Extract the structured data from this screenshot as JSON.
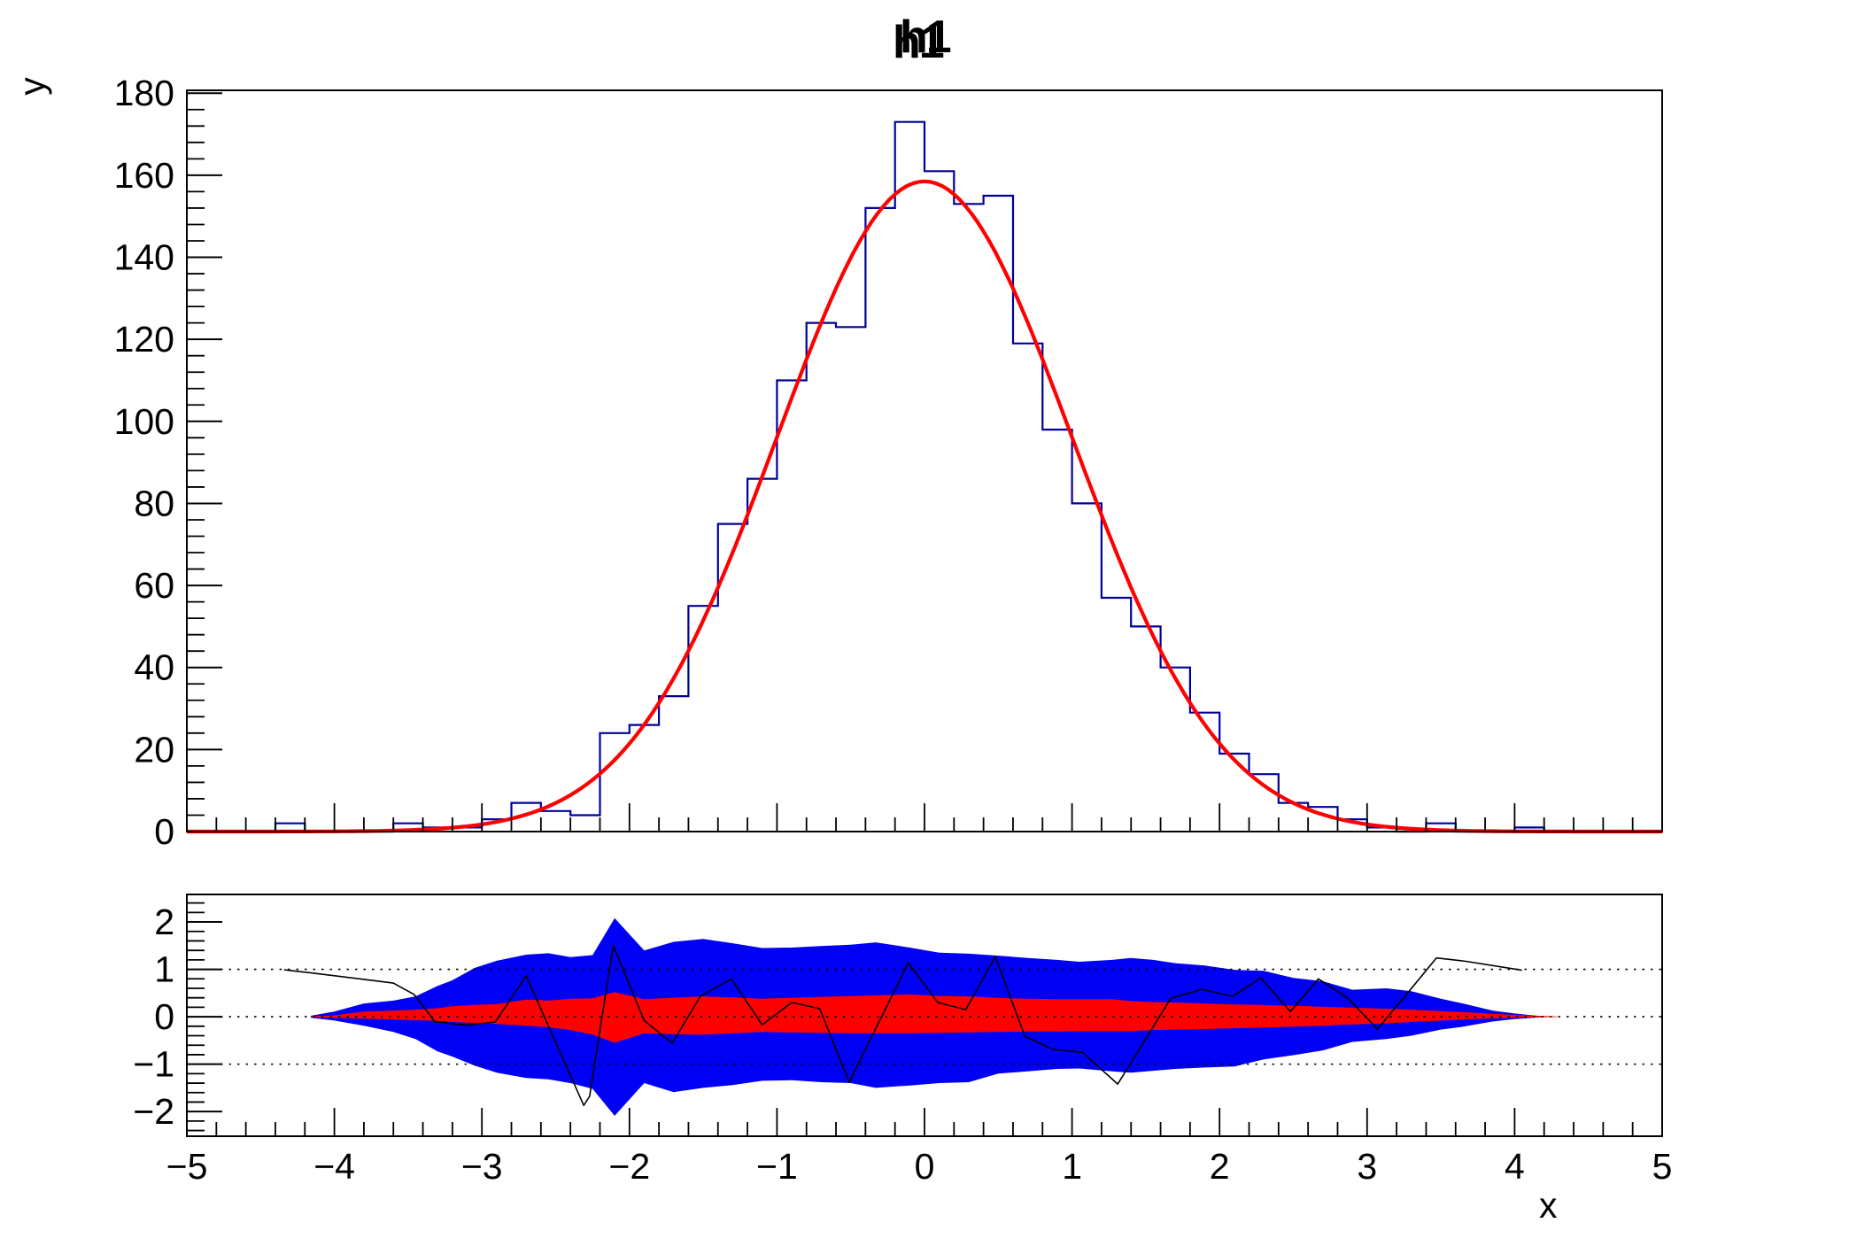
{
  "title": {
    "text": "h1"
  },
  "axes": {
    "x": {
      "label": "x",
      "min": -5,
      "max": 5,
      "major_ticks": [
        -5,
        -4,
        -3,
        -2,
        -1,
        0,
        1,
        2,
        3,
        4,
        5
      ],
      "tick_labels": [
        "−5",
        "−4",
        "−3",
        "−2",
        "−1",
        "0",
        "1",
        "2",
        "3",
        "4",
        "5"
      ],
      "minor_step": 0.2
    },
    "y_top": {
      "label": "y",
      "min": 0,
      "max": 180.7,
      "major_ticks": [
        0,
        20,
        40,
        60,
        80,
        100,
        120,
        140,
        160,
        180
      ],
      "tick_labels": [
        "0",
        "20",
        "40",
        "60",
        "80",
        "100",
        "120",
        "140",
        "160",
        "180"
      ],
      "minor_step": 4
    },
    "y_bottom": {
      "min": -2.52,
      "max": 2.58,
      "major_ticks": [
        -2,
        -1,
        0,
        1,
        2
      ],
      "tick_labels": [
        "−2",
        "−1",
        "0",
        "1",
        "2"
      ],
      "minor_step": 0.2,
      "dotted_gridlines": [
        -1,
        0,
        1
      ]
    }
  },
  "colors": {
    "histogram_line": "#000099",
    "fit_curve": "#ff0000",
    "band_1sigma": "#ff0000",
    "band_2sigma": "#0000f5",
    "ratio_line": "#000000",
    "frame": "#000000"
  },
  "chart_data": [
    {
      "type": "bar",
      "subtype": "step-histogram-with-fit",
      "title": "h1",
      "xlabel": "x",
      "ylabel": "y",
      "xlim": [
        -5,
        5
      ],
      "ylim": [
        0,
        180.7
      ],
      "bin_start": -5,
      "bin_width": 0.2,
      "values": [
        0,
        0,
        0,
        2,
        0,
        0,
        0,
        2,
        1,
        1,
        3,
        7,
        5,
        4,
        24,
        26,
        33,
        55,
        75,
        86,
        110,
        124,
        123,
        152,
        173,
        161,
        153,
        155,
        119,
        98,
        80,
        57,
        50,
        40,
        29,
        19,
        14,
        7,
        6,
        3,
        1,
        0,
        2,
        0,
        0,
        1,
        0,
        0,
        0,
        0
      ],
      "fit": {
        "shape": "gaussian",
        "amplitude": 158.5,
        "mean": 0,
        "sigma": 1.0,
        "range": [
          -5,
          5
        ]
      }
    },
    {
      "type": "line",
      "subtype": "ratio-residual-panel",
      "xlim": [
        -5,
        5
      ],
      "ylim": [
        -2.52,
        2.58
      ],
      "dotted_gridlines": [
        -1,
        0,
        1
      ],
      "band_2sigma": [
        [
          -4.16,
          0.02,
          -0.02
        ],
        [
          -4.0,
          0.11,
          -0.08
        ],
        [
          -3.8,
          0.28,
          -0.19
        ],
        [
          -3.6,
          0.34,
          -0.32
        ],
        [
          -3.45,
          0.43,
          -0.47
        ],
        [
          -3.3,
          0.65,
          -0.73
        ],
        [
          -3.2,
          0.77,
          -0.84
        ],
        [
          -3.05,
          1.03,
          -1.03
        ],
        [
          -2.9,
          1.18,
          -1.18
        ],
        [
          -2.7,
          1.31,
          -1.29
        ],
        [
          -2.55,
          1.34,
          -1.32
        ],
        [
          -2.4,
          1.26,
          -1.4
        ],
        [
          -2.25,
          1.3,
          -1.52
        ],
        [
          -2.1,
          2.08,
          -2.09
        ],
        [
          -1.9,
          1.4,
          -1.4
        ],
        [
          -1.7,
          1.58,
          -1.59
        ],
        [
          -1.5,
          1.64,
          -1.5
        ],
        [
          -1.3,
          1.55,
          -1.44
        ],
        [
          -1.1,
          1.45,
          -1.35
        ],
        [
          -0.9,
          1.46,
          -1.34
        ],
        [
          -0.7,
          1.49,
          -1.38
        ],
        [
          -0.5,
          1.52,
          -1.4
        ],
        [
          -0.33,
          1.57,
          -1.5
        ],
        [
          -0.1,
          1.46,
          -1.45
        ],
        [
          0.1,
          1.35,
          -1.4
        ],
        [
          0.3,
          1.33,
          -1.38
        ],
        [
          0.5,
          1.29,
          -1.2
        ],
        [
          0.7,
          1.24,
          -1.15
        ],
        [
          0.9,
          1.2,
          -1.1
        ],
        [
          1.05,
          1.16,
          -1.09
        ],
        [
          1.27,
          1.2,
          -1.15
        ],
        [
          1.4,
          1.24,
          -1.18
        ],
        [
          1.55,
          1.2,
          -1.14
        ],
        [
          1.7,
          1.13,
          -1.1
        ],
        [
          1.9,
          1.08,
          -1.07
        ],
        [
          2.1,
          0.99,
          -1.05
        ],
        [
          2.3,
          0.97,
          -0.9
        ],
        [
          2.5,
          0.82,
          -0.81
        ],
        [
          2.7,
          0.75,
          -0.71
        ],
        [
          2.9,
          0.57,
          -0.53
        ],
        [
          3.13,
          0.6,
          -0.47
        ],
        [
          3.3,
          0.54,
          -0.4
        ],
        [
          3.5,
          0.38,
          -0.27
        ],
        [
          3.65,
          0.28,
          -0.21
        ],
        [
          3.85,
          0.13,
          -0.1
        ],
        [
          4.0,
          0.07,
          -0.05
        ],
        [
          4.19,
          0.01,
          -0.01
        ]
      ],
      "band_1sigma": [
        [
          -4.16,
          0.01,
          -0.01
        ],
        [
          -4.0,
          0.03,
          -0.02
        ],
        [
          -3.8,
          0.11,
          -0.04
        ],
        [
          -3.6,
          0.13,
          -0.06
        ],
        [
          -3.45,
          0.15,
          -0.07
        ],
        [
          -3.3,
          0.18,
          -0.09
        ],
        [
          -3.2,
          0.22,
          -0.11
        ],
        [
          -3.05,
          0.25,
          -0.13
        ],
        [
          -2.9,
          0.27,
          -0.15
        ],
        [
          -2.7,
          0.36,
          -0.19
        ],
        [
          -2.55,
          0.34,
          -0.22
        ],
        [
          -2.4,
          0.38,
          -0.28
        ],
        [
          -2.25,
          0.39,
          -0.38
        ],
        [
          -2.1,
          0.52,
          -0.55
        ],
        [
          -1.9,
          0.37,
          -0.35
        ],
        [
          -1.7,
          0.4,
          -0.37
        ],
        [
          -1.5,
          0.43,
          -0.38
        ],
        [
          -1.3,
          0.41,
          -0.35
        ],
        [
          -1.1,
          0.38,
          -0.32
        ],
        [
          -0.9,
          0.4,
          -0.33
        ],
        [
          -0.7,
          0.42,
          -0.34
        ],
        [
          -0.5,
          0.44,
          -0.35
        ],
        [
          -0.33,
          0.45,
          -0.35
        ],
        [
          -0.1,
          0.47,
          -0.35
        ],
        [
          0.1,
          0.44,
          -0.34
        ],
        [
          0.3,
          0.43,
          -0.33
        ],
        [
          0.5,
          0.4,
          -0.32
        ],
        [
          0.7,
          0.38,
          -0.31
        ],
        [
          0.9,
          0.37,
          -0.31
        ],
        [
          1.05,
          0.37,
          -0.3
        ],
        [
          1.27,
          0.37,
          -0.3
        ],
        [
          1.4,
          0.33,
          -0.3
        ],
        [
          1.55,
          0.31,
          -0.28
        ],
        [
          1.7,
          0.3,
          -0.27
        ],
        [
          1.9,
          0.28,
          -0.26
        ],
        [
          2.1,
          0.26,
          -0.24
        ],
        [
          2.3,
          0.25,
          -0.23
        ],
        [
          2.5,
          0.23,
          -0.21
        ],
        [
          2.7,
          0.21,
          -0.19
        ],
        [
          2.9,
          0.19,
          -0.16
        ],
        [
          3.13,
          0.17,
          -0.14
        ],
        [
          3.3,
          0.15,
          -0.11
        ],
        [
          3.5,
          0.12,
          -0.08
        ],
        [
          3.65,
          0.1,
          -0.06
        ],
        [
          3.85,
          0.06,
          -0.03
        ],
        [
          4.0,
          0.04,
          -0.02
        ],
        [
          4.29,
          0.005,
          -0.005
        ]
      ],
      "residual_line": [
        [
          -4.34,
          0.99
        ],
        [
          -4.14,
          0.92
        ],
        [
          -3.6,
          0.71
        ],
        [
          -3.46,
          0.47
        ],
        [
          -3.32,
          -0.1
        ],
        [
          -3.11,
          -0.18
        ],
        [
          -2.91,
          -0.11
        ],
        [
          -2.7,
          0.86
        ],
        [
          -2.31,
          -1.87
        ],
        [
          -2.27,
          -1.68
        ],
        [
          -2.11,
          1.5
        ],
        [
          -1.9,
          -0.08
        ],
        [
          -1.71,
          -0.56
        ],
        [
          -1.52,
          0.43
        ],
        [
          -1.31,
          0.8
        ],
        [
          -1.1,
          -0.17
        ],
        [
          -0.9,
          0.3
        ],
        [
          -0.71,
          0.17
        ],
        [
          -0.51,
          -1.38
        ],
        [
          -0.11,
          1.14
        ],
        [
          0.09,
          0.3
        ],
        [
          0.28,
          0.15
        ],
        [
          0.48,
          1.27
        ],
        [
          0.68,
          -0.41
        ],
        [
          0.87,
          -0.69
        ],
        [
          1.07,
          -0.75
        ],
        [
          1.31,
          -1.42
        ],
        [
          1.67,
          0.39
        ],
        [
          1.88,
          0.58
        ],
        [
          2.09,
          0.43
        ],
        [
          2.28,
          0.82
        ],
        [
          2.48,
          0.11
        ],
        [
          2.67,
          0.8
        ],
        [
          2.87,
          0.39
        ],
        [
          3.07,
          -0.26
        ],
        [
          3.28,
          0.52
        ],
        [
          3.47,
          1.24
        ],
        [
          3.67,
          1.17
        ],
        [
          4.05,
          0.98
        ]
      ]
    }
  ]
}
